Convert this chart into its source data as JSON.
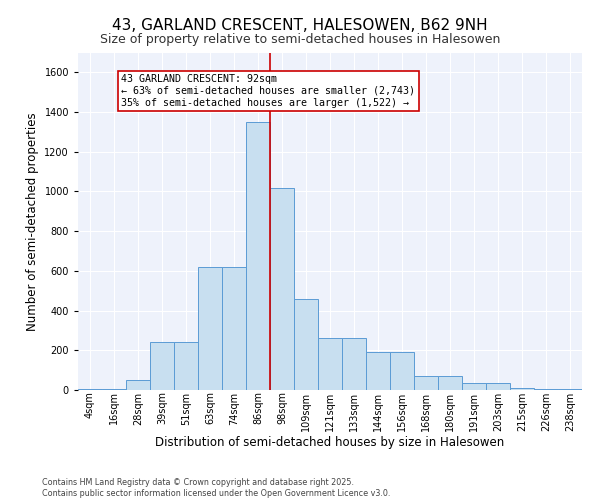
{
  "title": "43, GARLAND CRESCENT, HALESOWEN, B62 9NH",
  "subtitle": "Size of property relative to semi-detached houses in Halesowen",
  "xlabel": "Distribution of semi-detached houses by size in Halesowen",
  "ylabel": "Number of semi-detached properties",
  "categories": [
    "4sqm",
    "16sqm",
    "28sqm",
    "39sqm",
    "51sqm",
    "63sqm",
    "74sqm",
    "86sqm",
    "98sqm",
    "109sqm",
    "121sqm",
    "133sqm",
    "144sqm",
    "156sqm",
    "168sqm",
    "180sqm",
    "191sqm",
    "203sqm",
    "215sqm",
    "226sqm",
    "238sqm"
  ],
  "values": [
    5,
    5,
    50,
    240,
    240,
    620,
    620,
    1350,
    1020,
    460,
    260,
    260,
    190,
    190,
    70,
    70,
    35,
    35,
    10,
    5,
    5
  ],
  "bar_color": "#c8dff0",
  "bar_edge_color": "#5b9bd5",
  "vline_x_idx": 7.5,
  "vline_color": "#cc0000",
  "annotation_text": "43 GARLAND CRESCENT: 92sqm\n← 63% of semi-detached houses are smaller (2,743)\n35% of semi-detached houses are larger (1,522) →",
  "annotation_box_color": "#ffffff",
  "annotation_box_edge_color": "#cc0000",
  "ylim": [
    0,
    1700
  ],
  "yticks": [
    0,
    200,
    400,
    600,
    800,
    1000,
    1200,
    1400,
    1600
  ],
  "footer": "Contains HM Land Registry data © Crown copyright and database right 2025.\nContains public sector information licensed under the Open Government Licence v3.0.",
  "bg_color": "#eef2fb",
  "title_fontsize": 11,
  "subtitle_fontsize": 9,
  "tick_fontsize": 7,
  "axis_label_fontsize": 8.5
}
